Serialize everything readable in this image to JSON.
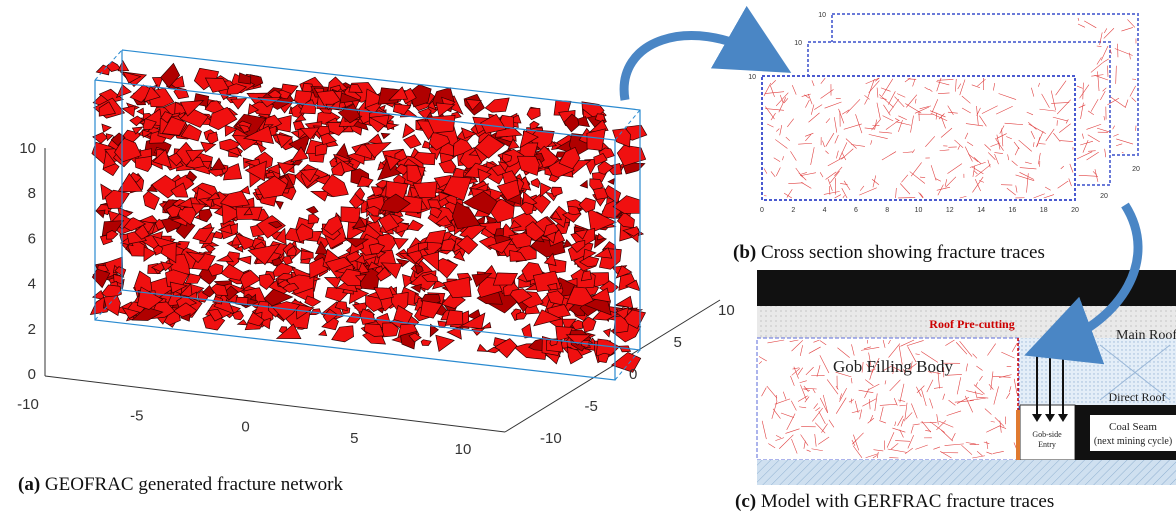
{
  "panels": [
    {
      "label": "(a)",
      "caption": "GEOFRAC generated fracture network",
      "z_ticks": [
        0,
        2,
        4,
        6,
        8,
        10
      ],
      "x_ticks": [
        -10,
        -5,
        0,
        5,
        10
      ],
      "y_ticks": [
        -10,
        -5,
        0,
        5,
        10
      ]
    },
    {
      "label": "(b)",
      "caption": "Cross section showing fracture traces",
      "x_ticks": [
        0,
        2,
        4,
        6,
        8,
        10,
        12,
        14,
        16,
        18,
        20
      ],
      "y_tick": 10,
      "back_y_tick": 10,
      "back_x_tick": 20
    },
    {
      "label": "(c)",
      "caption": "Model with GERFRAC fracture traces",
      "roof_precutting": "Roof Pre-cutting",
      "main_roof": "Main Roof",
      "gob_filling": "Gob Filling Body",
      "direct_roof": "Direct Roof",
      "gob_side_entry": [
        "Gob-side",
        "Entry"
      ],
      "coal_seam": [
        "Coal Seam",
        "(next mining cycle)"
      ]
    }
  ]
}
